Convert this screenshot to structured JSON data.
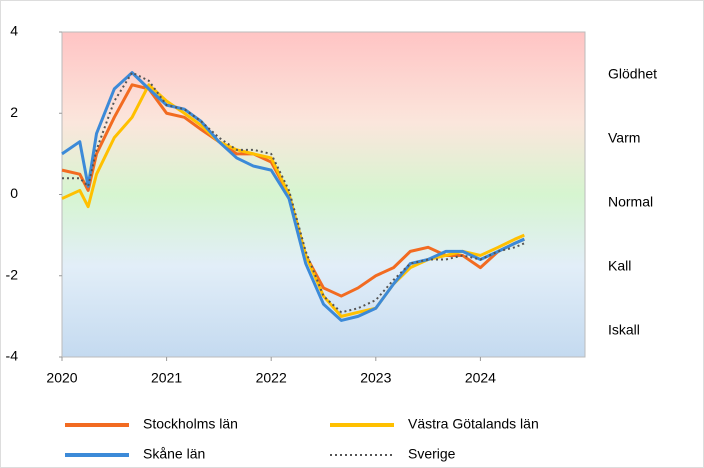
{
  "chart_data": {
    "type": "line",
    "x": [
      2020,
      2020.17,
      2020.25,
      2020.33,
      2020.5,
      2020.67,
      2020.83,
      2021,
      2021.17,
      2021.33,
      2021.5,
      2021.67,
      2021.83,
      2022,
      2022.17,
      2022.33,
      2022.5,
      2022.67,
      2022.83,
      2023,
      2023.17,
      2023.33,
      2023.5,
      2023.67,
      2023.83,
      2024,
      2024.17,
      2024.33,
      2024.42
    ],
    "series": [
      {
        "name": "Stockholms län",
        "color": "#f26b21",
        "style": "solid",
        "values": [
          0.6,
          0.5,
          0.1,
          1.0,
          1.9,
          2.7,
          2.6,
          2.0,
          1.9,
          1.6,
          1.3,
          1.0,
          1.0,
          0.8,
          0.0,
          -1.5,
          -2.3,
          -2.5,
          -2.3,
          -2.0,
          -1.8,
          -1.4,
          -1.3,
          -1.5,
          -1.5,
          -1.8,
          -1.4,
          -1.2,
          -1.1
        ]
      },
      {
        "name": "Västra Götalands län",
        "color": "#ffc000",
        "style": "solid",
        "values": [
          -0.1,
          0.1,
          -0.3,
          0.5,
          1.4,
          1.9,
          2.7,
          2.3,
          2.0,
          1.7,
          1.3,
          1.1,
          1.0,
          0.9,
          0.0,
          -1.5,
          -2.5,
          -3.0,
          -2.9,
          -2.8,
          -2.2,
          -1.8,
          -1.6,
          -1.5,
          -1.4,
          -1.5,
          -1.3,
          -1.1,
          -1.0
        ]
      },
      {
        "name": "Skåne län",
        "color": "#3c8ad8",
        "style": "solid",
        "values": [
          1.0,
          1.3,
          0.2,
          1.5,
          2.6,
          3.0,
          2.6,
          2.2,
          2.1,
          1.8,
          1.3,
          0.9,
          0.7,
          0.6,
          -0.1,
          -1.7,
          -2.7,
          -3.1,
          -3.0,
          -2.8,
          -2.2,
          -1.7,
          -1.6,
          -1.4,
          -1.4,
          -1.6,
          -1.4,
          -1.2,
          -1.1
        ]
      },
      {
        "name": "Sverige",
        "color": "#555555",
        "style": "dotted",
        "values": [
          0.4,
          0.4,
          0.2,
          1.1,
          2.3,
          3.0,
          2.8,
          2.2,
          2.1,
          1.8,
          1.4,
          1.1,
          1.1,
          1.0,
          0.1,
          -1.4,
          -2.5,
          -2.9,
          -2.8,
          -2.6,
          -2.1,
          -1.7,
          -1.6,
          -1.6,
          -1.5,
          -1.6,
          -1.4,
          -1.3,
          -1.2
        ]
      }
    ],
    "xlim": [
      2020,
      2025
    ],
    "xticks": [
      2020,
      2021,
      2022,
      2023,
      2024
    ],
    "ylim": [
      -4,
      4
    ],
    "yticks": [
      -4,
      -2,
      0,
      2,
      4
    ],
    "zones": [
      "Glödhet",
      "Varm",
      "Normal",
      "Kall",
      "Iskall"
    ],
    "grid": false
  }
}
